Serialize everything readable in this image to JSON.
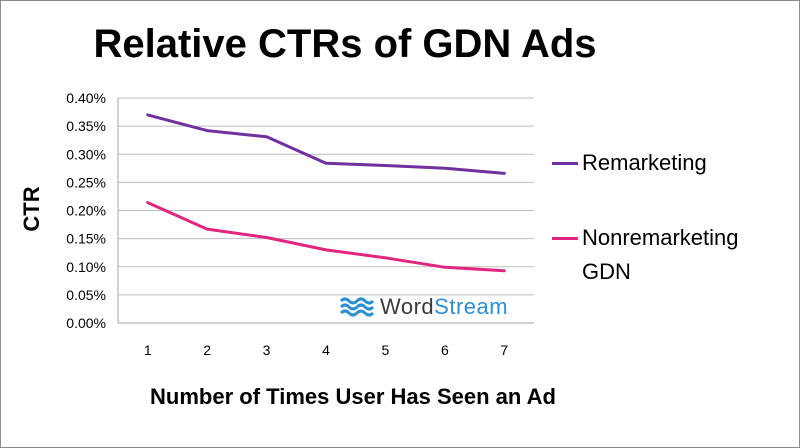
{
  "chart_data": {
    "type": "line",
    "title": "Relative CTRs of GDN Ads",
    "xlabel": "Number of Times User Has Seen an Ad",
    "ylabel": "CTR",
    "categories": [
      "1",
      "2",
      "3",
      "4",
      "5",
      "6",
      "7"
    ],
    "ylim": [
      0,
      0.4
    ],
    "yticks": [
      "0.00%",
      "0.05%",
      "0.10%",
      "0.15%",
      "0.20%",
      "0.25%",
      "0.30%",
      "0.35%",
      "0.40%"
    ],
    "grid": true,
    "legend_position": "right",
    "series": [
      {
        "name": "Remarketing",
        "legend_lines": [
          "Remarketing"
        ],
        "color": "#7030a0",
        "values": [
          0.37,
          0.342,
          0.331,
          0.284,
          0.28,
          0.275,
          0.266
        ]
      },
      {
        "name": "Nonremarketing GDN",
        "legend_lines": [
          "Nonremarketing",
          "GDN"
        ],
        "color": "#e2267f",
        "values": [
          0.214,
          0.167,
          0.152,
          0.13,
          0.116,
          0.099,
          0.093
        ]
      }
    ]
  },
  "watermark": {
    "word_part1": "Word",
    "word_part2": "Stream",
    "icon": "wave-icon",
    "color_brand": "#2b8fd6"
  }
}
